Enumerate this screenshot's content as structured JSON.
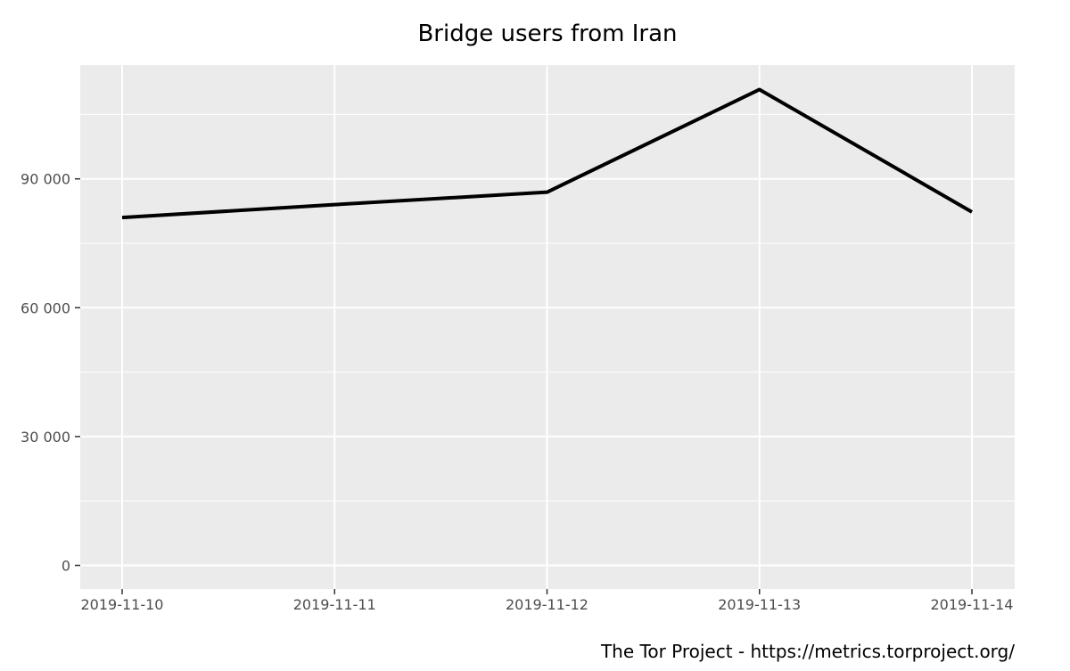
{
  "chart_data": {
    "type": "line",
    "title": "Bridge users from Iran",
    "xlabel": "",
    "ylabel": "",
    "caption": "The Tor Project - https://metrics.torproject.org/",
    "x": [
      "2019-11-10",
      "2019-11-11",
      "2019-11-12",
      "2019-11-13",
      "2019-11-14"
    ],
    "x_tick_labels": [
      "2019-11-10",
      "2019-11-11",
      "2019-11-12",
      "2019-11-13",
      "2019-11-14"
    ],
    "series": [
      {
        "values": [
          81000,
          84000,
          86900,
          110800,
          82300
        ]
      }
    ],
    "y_ticks": [
      0,
      30000,
      60000,
      90000
    ],
    "y_tick_labels": [
      "0",
      "30 000",
      "60 000",
      "90 000"
    ],
    "ylim": [
      -5500,
      116500
    ],
    "grid": true,
    "legend": "none",
    "colors": {
      "panel": "#ebebeb",
      "grid": "#ffffff",
      "line": "#000000",
      "tick_text": "#4d4d4d"
    }
  }
}
